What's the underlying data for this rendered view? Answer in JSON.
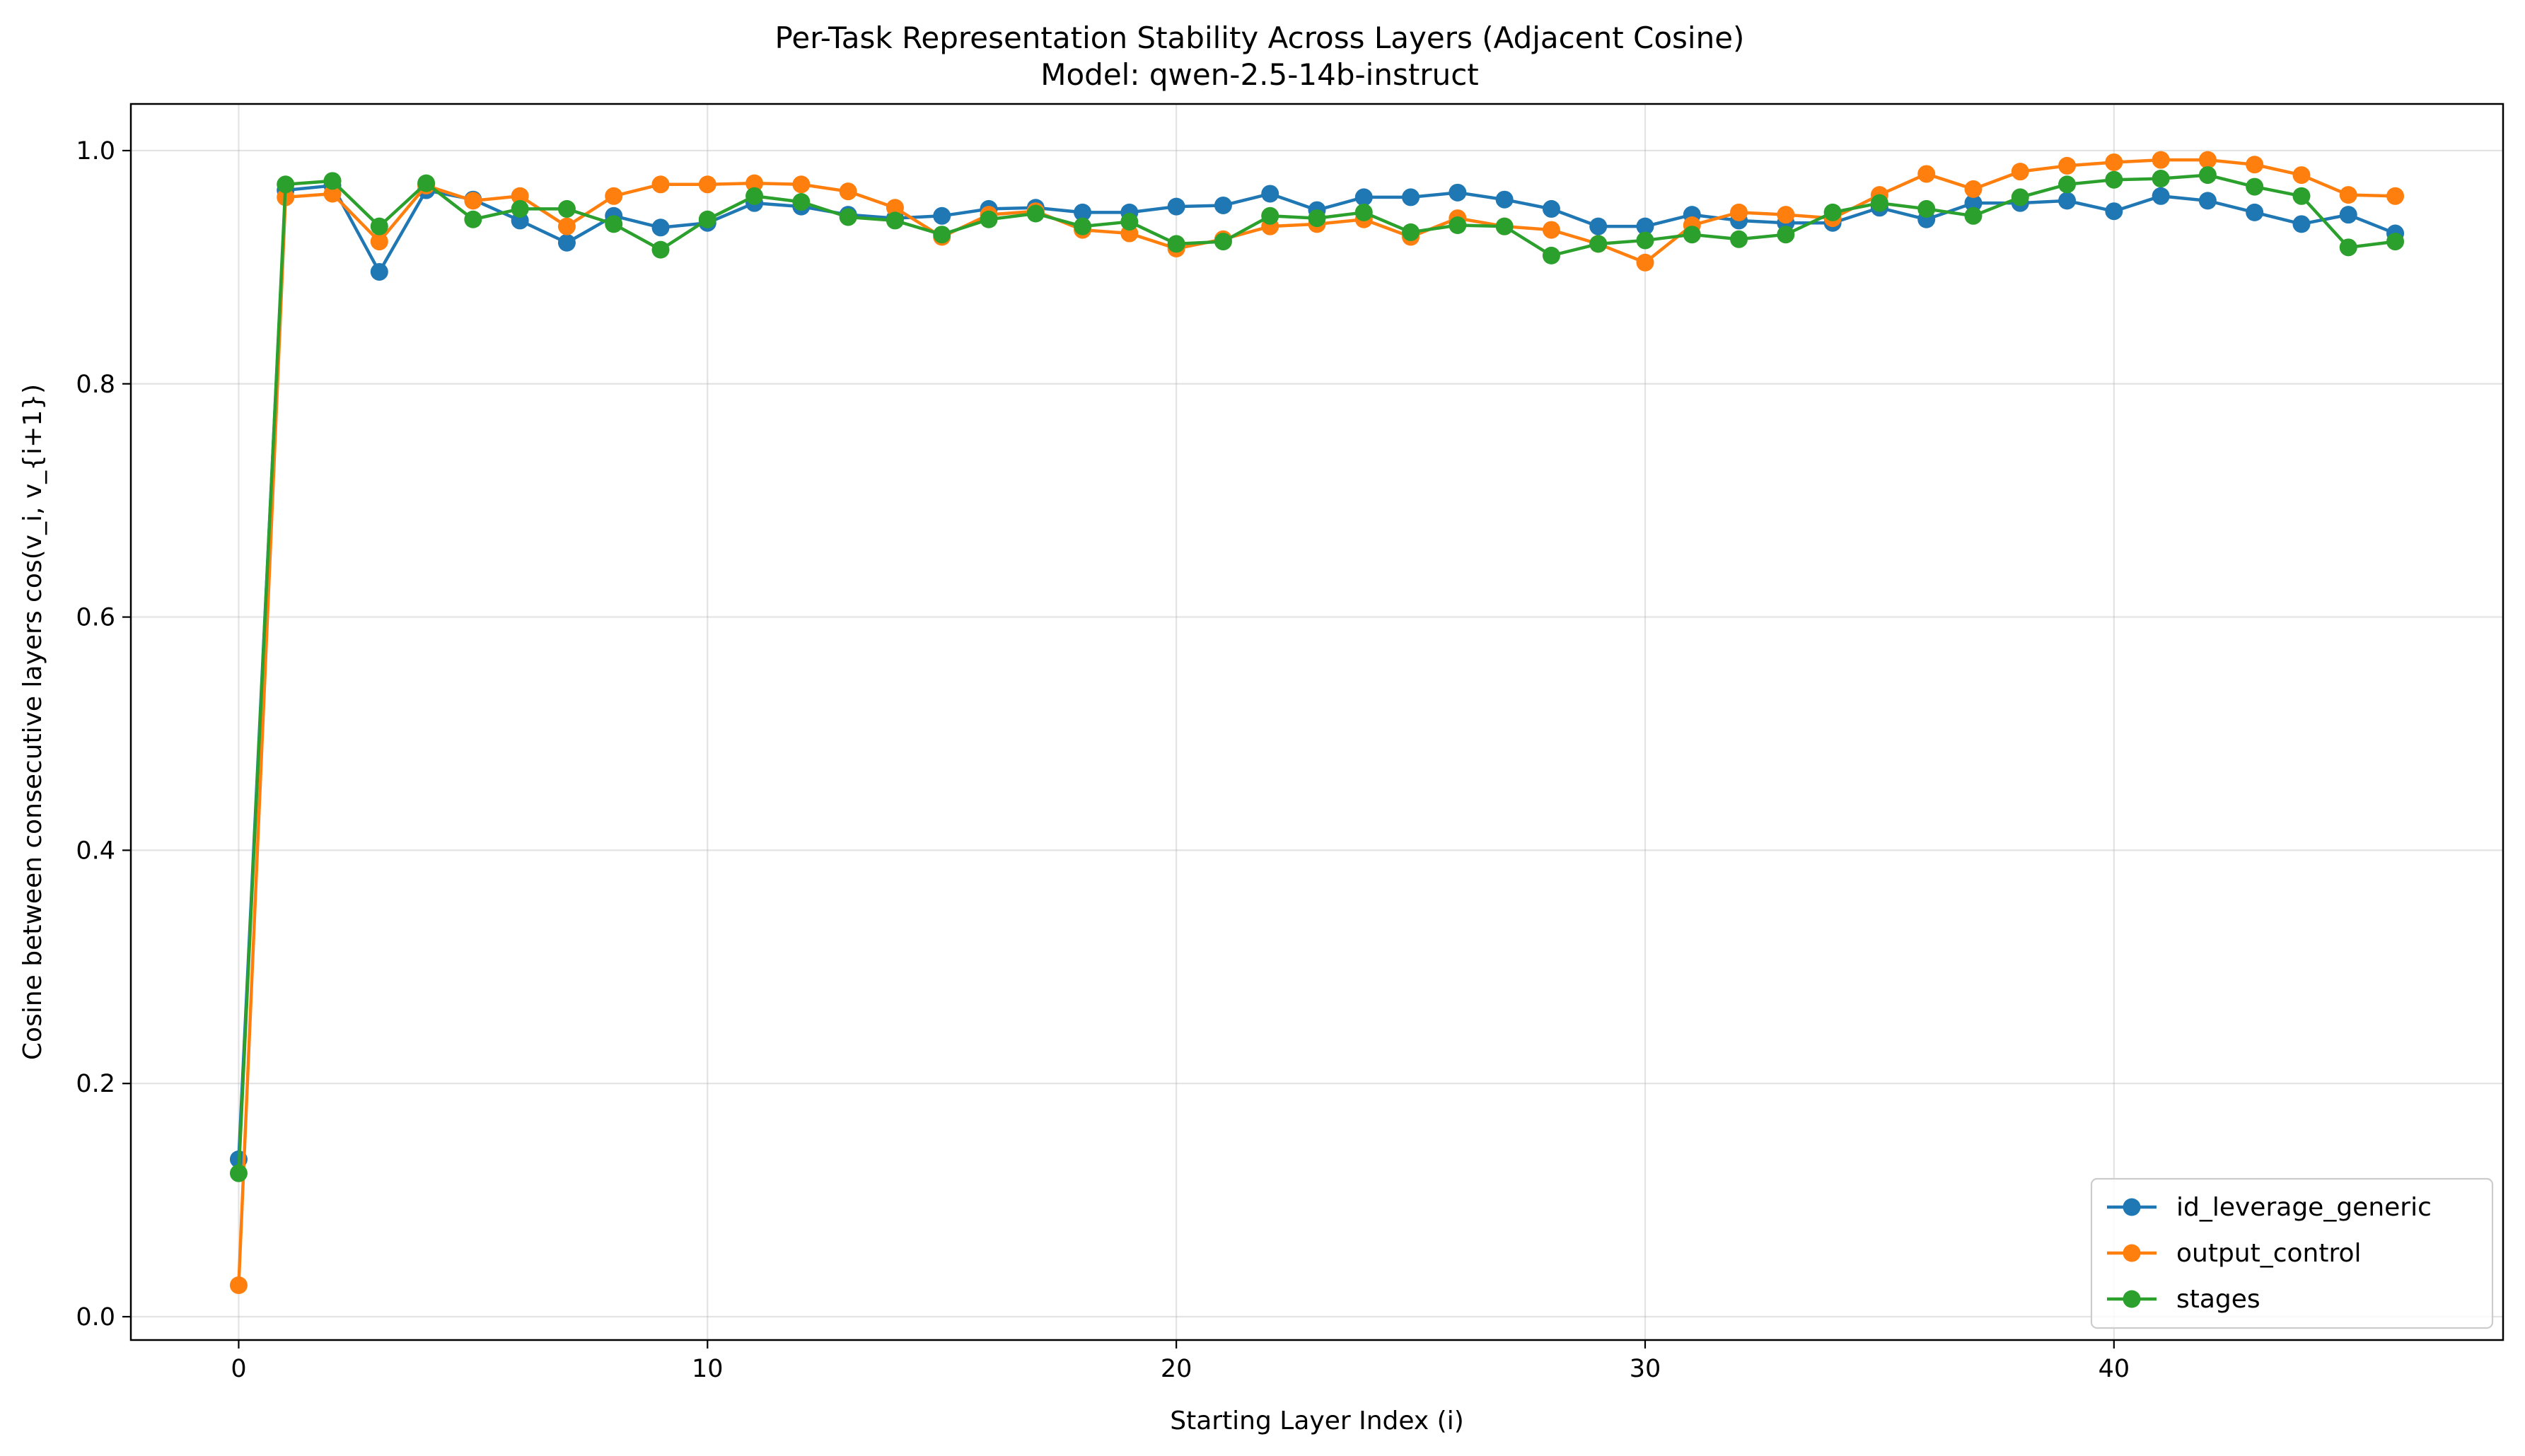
{
  "chart_data": {
    "type": "line",
    "title": "Per-Task Representation Stability Across Layers (Adjacent Cosine)",
    "subtitle": "Model: qwen-2.5-14b-instruct",
    "xlabel": "Starting Layer Index (i)",
    "ylabel": "Cosine between consecutive layers cos(v_i, v_{i+1})",
    "xlim": [
      -2.3,
      48.3
    ],
    "ylim": [
      -0.02,
      1.04
    ],
    "xticks": [
      0,
      10,
      20,
      30,
      40
    ],
    "yticks": [
      0.0,
      0.2,
      0.4,
      0.6,
      0.8,
      1.0
    ],
    "xtick_labels": [
      "0",
      "10",
      "20",
      "30",
      "40"
    ],
    "ytick_labels": [
      "0.0",
      "0.2",
      "0.4",
      "0.6",
      "0.8",
      "1.0"
    ],
    "grid": true,
    "legend_position": "lower-right",
    "x": [
      0,
      1,
      2,
      3,
      4,
      5,
      6,
      7,
      8,
      9,
      10,
      11,
      12,
      13,
      14,
      15,
      16,
      17,
      18,
      19,
      20,
      21,
      22,
      23,
      24,
      25,
      26,
      27,
      28,
      29,
      30,
      31,
      32,
      33,
      34,
      35,
      36,
      37,
      38,
      39,
      40,
      41,
      42,
      43,
      44,
      45,
      46
    ],
    "series": [
      {
        "name": "id_leverage_generic",
        "color": "#1f77b4",
        "values": [
          0.135,
          0.966,
          0.97,
          0.896,
          0.966,
          0.958,
          0.94,
          0.921,
          0.944,
          0.934,
          0.938,
          0.955,
          0.952,
          0.945,
          0.942,
          0.944,
          0.95,
          0.951,
          0.947,
          0.947,
          0.952,
          0.953,
          0.963,
          0.949,
          0.96,
          0.96,
          0.964,
          0.958,
          0.95,
          0.935,
          0.935,
          0.945,
          0.94,
          0.938,
          0.938,
          0.951,
          0.941,
          0.955,
          0.955,
          0.957,
          0.948,
          0.961,
          0.957,
          0.947,
          0.937,
          0.945,
          0.929
        ]
      },
      {
        "name": "output_control",
        "color": "#ff7f0e",
        "values": [
          0.027,
          0.96,
          0.963,
          0.922,
          0.97,
          0.957,
          0.961,
          0.935,
          0.961,
          0.971,
          0.971,
          0.972,
          0.971,
          0.965,
          0.951,
          0.926,
          0.945,
          0.948,
          0.932,
          0.929,
          0.916,
          0.924,
          0.935,
          0.937,
          0.941,
          0.926,
          0.942,
          0.935,
          0.932,
          0.92,
          0.904,
          0.936,
          0.947,
          0.945,
          0.942,
          0.962,
          0.98,
          0.967,
          0.982,
          0.987,
          0.99,
          0.992,
          0.992,
          0.988,
          0.979,
          0.962,
          0.961
        ]
      },
      {
        "name": "stages",
        "color": "#2ca02c",
        "values": [
          0.123,
          0.971,
          0.974,
          0.935,
          0.972,
          0.941,
          0.95,
          0.95,
          0.937,
          0.915,
          0.941,
          0.961,
          0.956,
          0.943,
          0.94,
          0.928,
          0.941,
          0.946,
          0.935,
          0.939,
          0.92,
          0.922,
          0.944,
          0.942,
          0.947,
          0.93,
          0.936,
          0.935,
          0.91,
          0.92,
          0.923,
          0.928,
          0.924,
          0.928,
          0.947,
          0.955,
          0.95,
          0.944,
          0.96,
          0.971,
          0.975,
          0.976,
          0.979,
          0.969,
          0.961,
          0.917,
          0.922
        ]
      }
    ]
  }
}
